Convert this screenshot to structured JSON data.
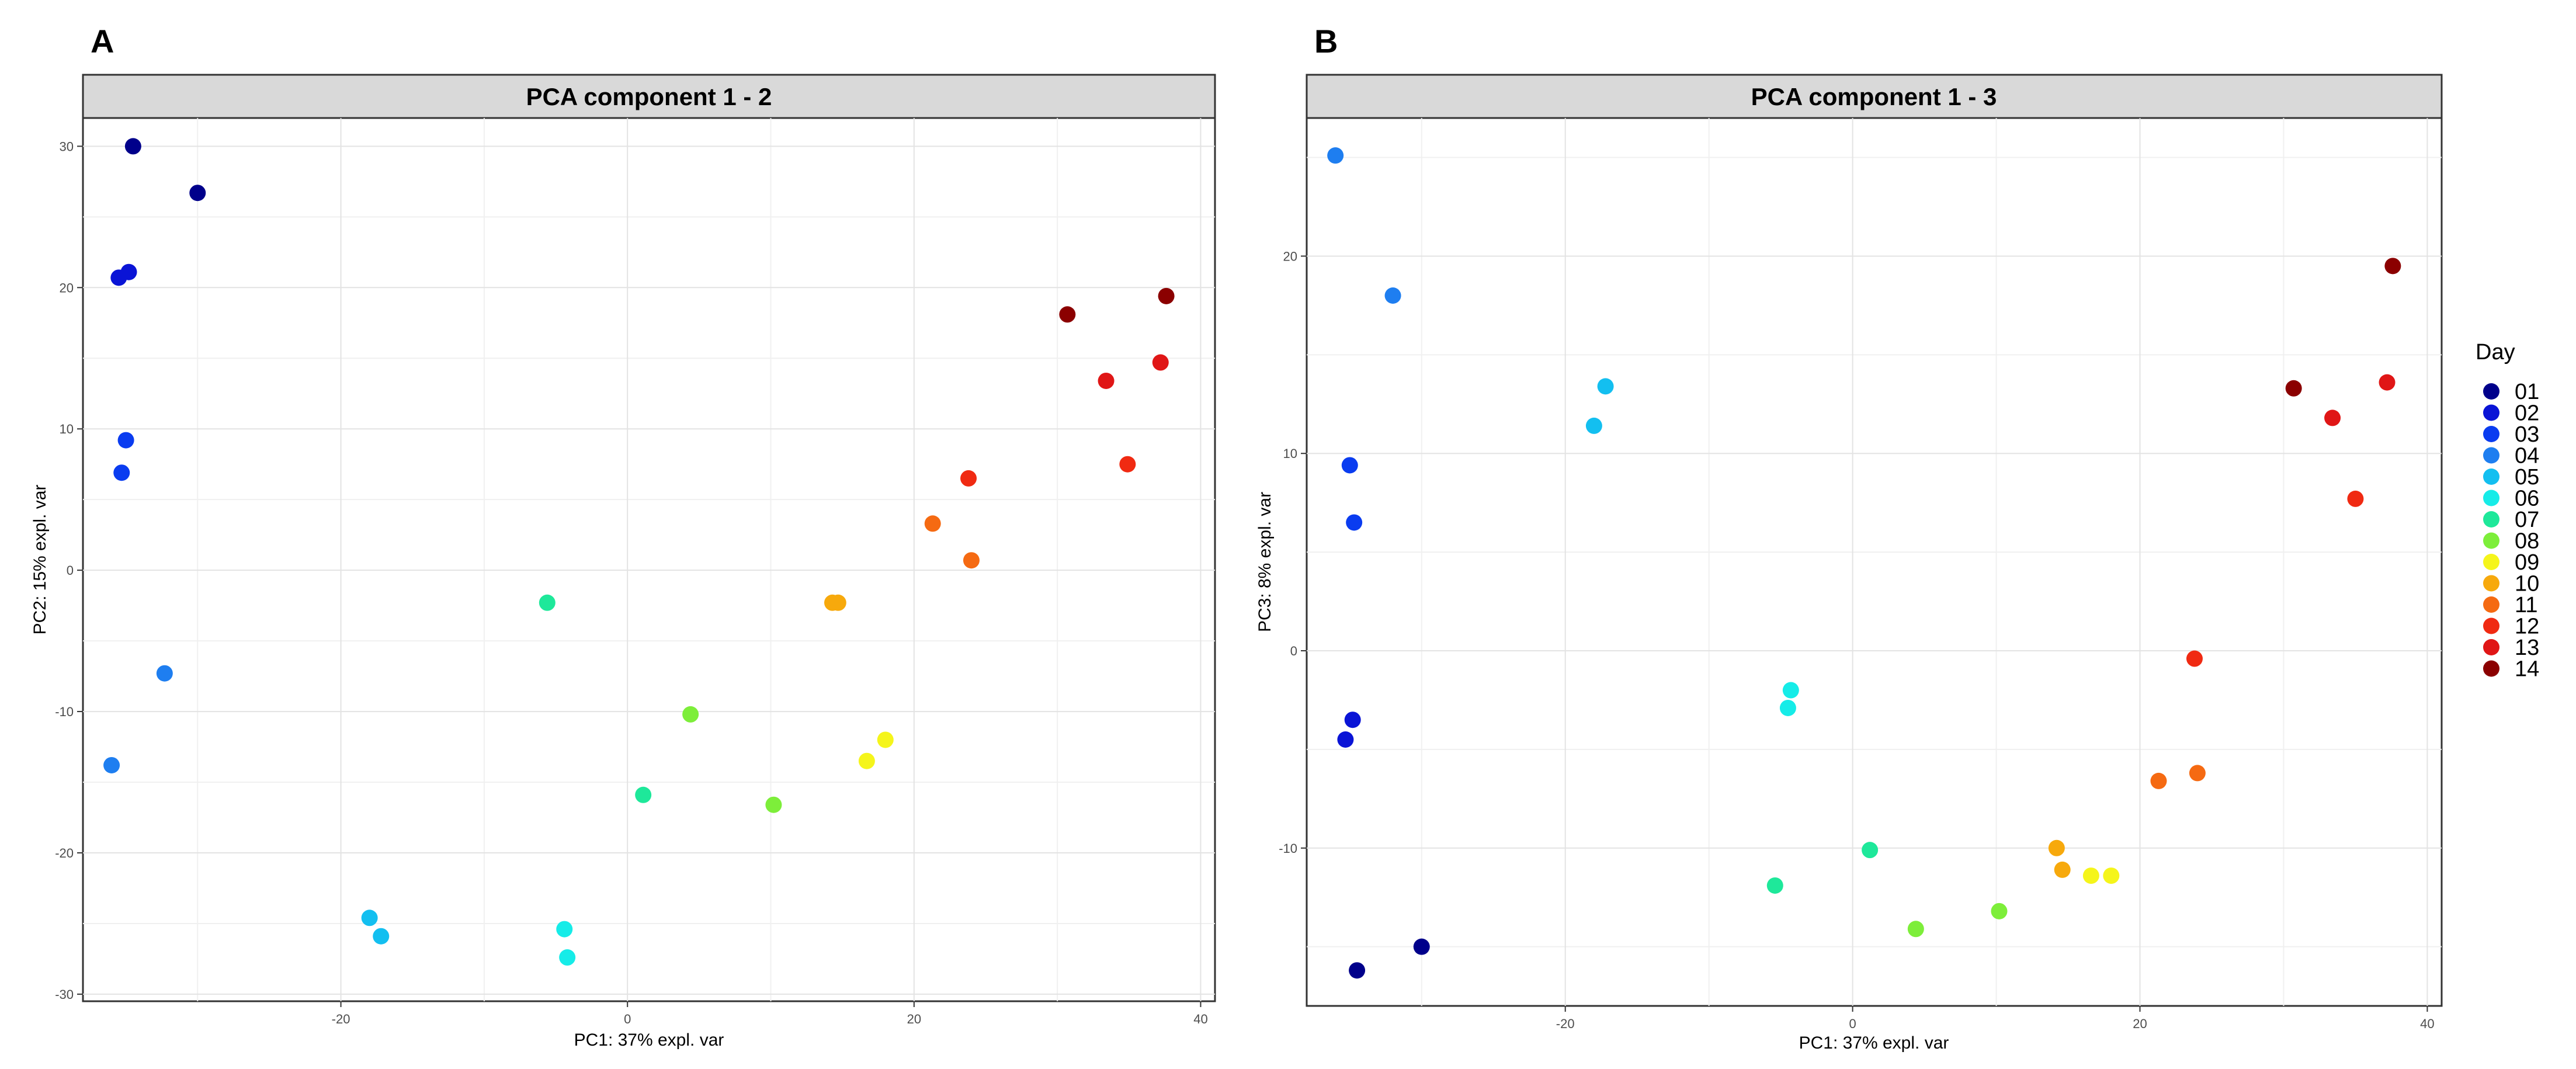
{
  "chart_data": [
    {
      "type": "scatter",
      "panel_label": "A",
      "title": "PCA component 1 - 2",
      "xlabel": "PC1: 37% expl. var",
      "ylabel": "PC2: 15% expl. var",
      "xlim": [
        -38,
        41
      ],
      "ylim": [
        -30.5,
        32
      ],
      "xticks": [
        -20,
        0,
        20,
        40
      ],
      "xtick_labels": [
        "-20",
        "0",
        "20",
        "40"
      ],
      "yticks": [
        -30,
        -20,
        -10,
        0,
        10,
        20,
        30
      ],
      "ytick_labels": [
        "-30",
        "-20",
        "-10",
        "0",
        "10",
        "20",
        "30"
      ],
      "grid": true,
      "points": [
        {
          "day": "01",
          "x": -34.5,
          "y": 30.0
        },
        {
          "day": "01",
          "x": -30.0,
          "y": 26.7
        },
        {
          "day": "02",
          "x": -35.5,
          "y": 20.7
        },
        {
          "day": "02",
          "x": -34.8,
          "y": 21.1
        },
        {
          "day": "03",
          "x": -35.0,
          "y": 9.2
        },
        {
          "day": "03",
          "x": -35.3,
          "y": 6.9
        },
        {
          "day": "04",
          "x": -32.3,
          "y": -7.3
        },
        {
          "day": "04",
          "x": -36.0,
          "y": -13.8
        },
        {
          "day": "05",
          "x": -18.0,
          "y": -24.6
        },
        {
          "day": "05",
          "x": -17.2,
          "y": -25.9
        },
        {
          "day": "06",
          "x": -4.4,
          "y": -25.4
        },
        {
          "day": "06",
          "x": -4.2,
          "y": -27.4
        },
        {
          "day": "07",
          "x": -5.6,
          "y": -2.3
        },
        {
          "day": "07",
          "x": 1.1,
          "y": -15.9
        },
        {
          "day": "08",
          "x": 4.4,
          "y": -10.2
        },
        {
          "day": "08",
          "x": 10.2,
          "y": -16.6
        },
        {
          "day": "09",
          "x": 16.7,
          "y": -13.5
        },
        {
          "day": "09",
          "x": 18.0,
          "y": -12.0
        },
        {
          "day": "10",
          "x": 14.3,
          "y": -2.3
        },
        {
          "day": "10",
          "x": 14.7,
          "y": -2.3
        },
        {
          "day": "11",
          "x": 21.3,
          "y": 3.3
        },
        {
          "day": "11",
          "x": 24.0,
          "y": 0.7
        },
        {
          "day": "12",
          "x": 23.8,
          "y": 6.5
        },
        {
          "day": "12",
          "x": 34.9,
          "y": 7.5
        },
        {
          "day": "13",
          "x": 33.4,
          "y": 13.4
        },
        {
          "day": "13",
          "x": 37.2,
          "y": 14.7
        },
        {
          "day": "14",
          "x": 30.7,
          "y": 18.1
        },
        {
          "day": "14",
          "x": 37.6,
          "y": 19.4
        }
      ]
    },
    {
      "type": "scatter",
      "panel_label": "B",
      "title": "PCA component 1 - 3",
      "xlabel": "PC1: 37% expl. var",
      "ylabel": "PC3: 8% expl. var",
      "xlim": [
        -38,
        41
      ],
      "ylim": [
        -18,
        27
      ],
      "xticks": [
        -20,
        0,
        20,
        40
      ],
      "xtick_labels": [
        "-20",
        "0",
        "20",
        "40"
      ],
      "yticks": [
        -10,
        0,
        10,
        20
      ],
      "ytick_labels": [
        "-10",
        "0",
        "10",
        "20"
      ],
      "grid": true,
      "points": [
        {
          "day": "01",
          "x": -34.5,
          "y": -16.2
        },
        {
          "day": "01",
          "x": -30.0,
          "y": -15.0
        },
        {
          "day": "02",
          "x": -35.3,
          "y": -4.5
        },
        {
          "day": "02",
          "x": -34.8,
          "y": -3.5
        },
        {
          "day": "03",
          "x": -35.0,
          "y": 9.4
        },
        {
          "day": "03",
          "x": -34.7,
          "y": 6.5
        },
        {
          "day": "04",
          "x": -36.0,
          "y": 25.1
        },
        {
          "day": "04",
          "x": -32.0,
          "y": 18.0
        },
        {
          "day": "05",
          "x": -18.0,
          "y": 11.4
        },
        {
          "day": "05",
          "x": -17.2,
          "y": 13.4
        },
        {
          "day": "06",
          "x": -4.3,
          "y": -2.0
        },
        {
          "day": "06",
          "x": -4.5,
          "y": -2.9
        },
        {
          "day": "07",
          "x": 1.2,
          "y": -10.1
        },
        {
          "day": "07",
          "x": -5.4,
          "y": -11.9
        },
        {
          "day": "08",
          "x": 4.4,
          "y": -14.1
        },
        {
          "day": "08",
          "x": 10.2,
          "y": -13.2
        },
        {
          "day": "09",
          "x": 16.6,
          "y": -11.4
        },
        {
          "day": "09",
          "x": 18.0,
          "y": -11.4
        },
        {
          "day": "10",
          "x": 14.2,
          "y": -10.0
        },
        {
          "day": "10",
          "x": 14.6,
          "y": -11.1
        },
        {
          "day": "11",
          "x": 21.3,
          "y": -6.6
        },
        {
          "day": "11",
          "x": 24.0,
          "y": -6.2
        },
        {
          "day": "12",
          "x": 23.8,
          "y": -0.4
        },
        {
          "day": "12",
          "x": 35.0,
          "y": 7.7
        },
        {
          "day": "13",
          "x": 33.4,
          "y": 11.8
        },
        {
          "day": "13",
          "x": 37.2,
          "y": 13.6
        },
        {
          "day": "14",
          "x": 30.7,
          "y": 13.3
        },
        {
          "day": "14",
          "x": 37.6,
          "y": 19.5
        }
      ]
    }
  ],
  "legend": {
    "title": "Day",
    "items": [
      {
        "label": "01",
        "color": "#00008b"
      },
      {
        "label": "02",
        "color": "#0a14d6"
      },
      {
        "label": "03",
        "color": "#0a3cf0"
      },
      {
        "label": "04",
        "color": "#1e7ef0"
      },
      {
        "label": "05",
        "color": "#13bff0"
      },
      {
        "label": "06",
        "color": "#16ece8"
      },
      {
        "label": "07",
        "color": "#1ee89a"
      },
      {
        "label": "08",
        "color": "#7dee3a"
      },
      {
        "label": "09",
        "color": "#f5f51b"
      },
      {
        "label": "10",
        "color": "#f7a90c"
      },
      {
        "label": "11",
        "color": "#f56a12"
      },
      {
        "label": "12",
        "color": "#f02a12"
      },
      {
        "label": "13",
        "color": "#e01616"
      },
      {
        "label": "14",
        "color": "#8b0000"
      }
    ]
  }
}
